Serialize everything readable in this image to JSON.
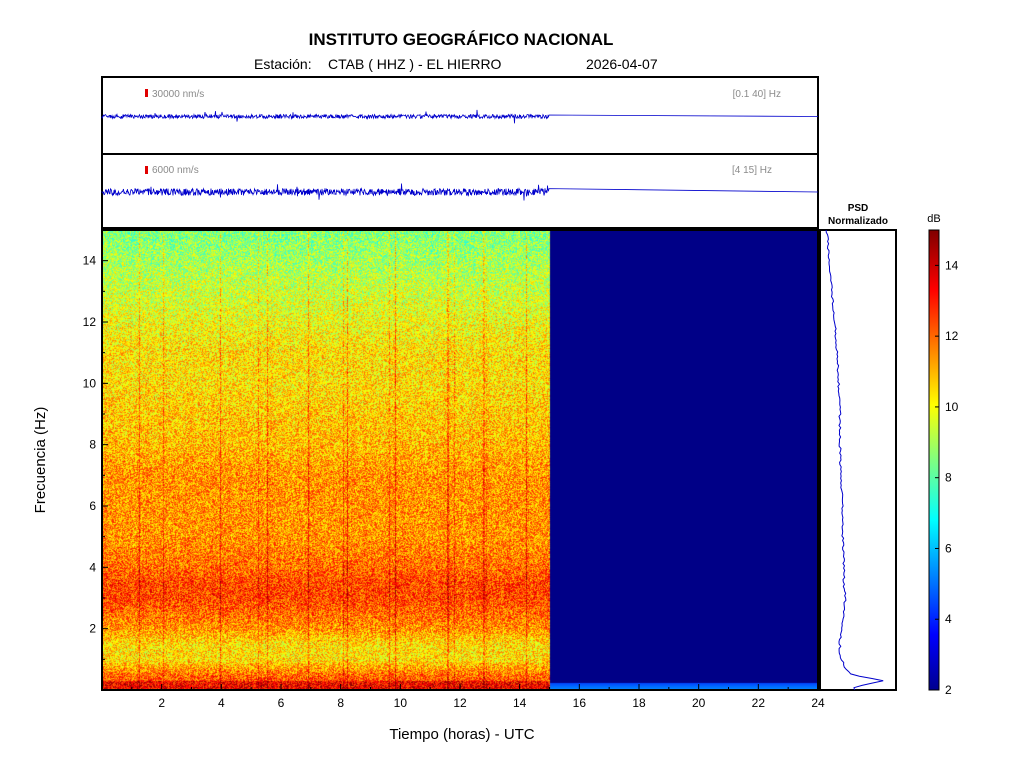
{
  "header": {
    "title": "INSTITUTO GEOGRÁFICO NACIONAL",
    "station_prefix": "Estación:",
    "station": "CTAB ( HHZ ) - EL HIERRO",
    "date": "2026-04-07"
  },
  "traces": [
    {
      "scale_label": "30000 nm/s",
      "band_label": "[0.1 40] Hz",
      "color": "#0000cc",
      "data_end_hour": 15.0
    },
    {
      "scale_label": "6000 nm/s",
      "band_label": "[4 15] Hz",
      "color": "#0000cc",
      "data_end_hour": 15.0
    }
  ],
  "chart_data": {
    "type": "heatmap",
    "title": "INSTITUTO GEOGRÁFICO NACIONAL",
    "xlabel": "Tiempo (horas) - UTC",
    "ylabel": "Frecuencia  (Hz)",
    "xlim": [
      0,
      24
    ],
    "ylim": [
      0,
      15
    ],
    "x_ticks": [
      2,
      4,
      6,
      8,
      10,
      12,
      14,
      16,
      18,
      20,
      22,
      24
    ],
    "y_ticks": [
      2,
      4,
      6,
      8,
      10,
      12,
      14
    ],
    "data_end_hour": 15.0,
    "colormap": "jet",
    "colorbar": {
      "label": "dB",
      "range": [
        2,
        15
      ],
      "ticks": [
        2,
        4,
        6,
        8,
        10,
        12,
        14
      ]
    },
    "frequency_profile_db": {
      "hz": [
        0.2,
        0.5,
        1,
        1.5,
        2,
        2.5,
        3,
        3.5,
        4,
        5,
        6,
        7,
        8,
        9,
        10,
        11,
        12,
        13,
        14,
        15
      ],
      "db": [
        12.5,
        12.0,
        10.5,
        10.5,
        11.5,
        12.0,
        12.5,
        12.5,
        12.0,
        11.5,
        11.5,
        11.5,
        11.0,
        10.8,
        10.5,
        10.5,
        10.0,
        9.5,
        9.0,
        8.5
      ]
    },
    "psd": {
      "title": "PSD Normalizado",
      "hz": [
        0.1,
        0.3,
        0.5,
        0.8,
        1.2,
        1.6,
        2.0,
        2.5,
        3.0,
        3.5,
        4.0,
        4.5,
        5.0,
        6.0,
        7.0,
        8.0,
        9.0,
        10.0,
        11.0,
        12.0,
        13.0,
        14.0,
        15.0
      ],
      "value": [
        0.45,
        0.9,
        0.4,
        0.3,
        0.24,
        0.24,
        0.26,
        0.3,
        0.32,
        0.3,
        0.3,
        0.3,
        0.28,
        0.28,
        0.26,
        0.24,
        0.24,
        0.22,
        0.2,
        0.16,
        0.12,
        0.08,
        0.04
      ]
    }
  }
}
